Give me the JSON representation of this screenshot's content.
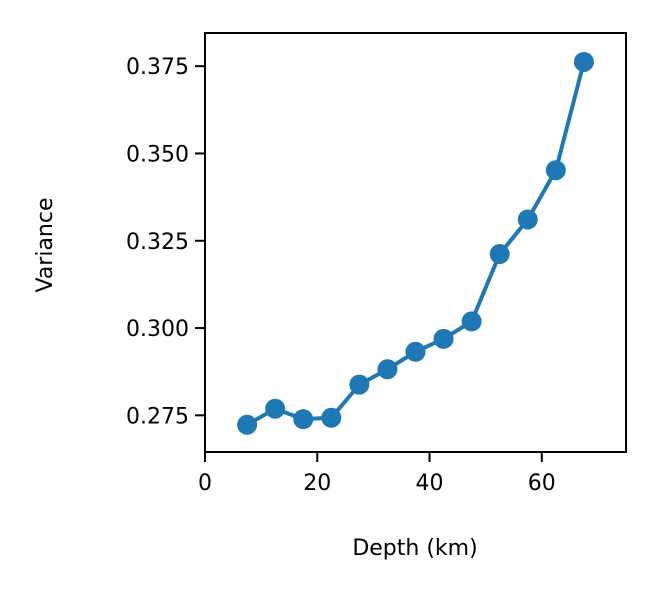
{
  "chart_data": {
    "type": "line",
    "title": "",
    "xlabel": "Depth (km)",
    "ylabel": "Variance",
    "xlim": [
      0,
      75
    ],
    "ylim": [
      0.2645,
      0.3845
    ],
    "x_ticks": [
      0,
      20,
      40,
      60
    ],
    "x_tick_labels": [
      "0",
      "20",
      "40",
      "60"
    ],
    "y_ticks": [
      0.275,
      0.3,
      0.325,
      0.35,
      0.375
    ],
    "y_tick_labels": [
      "0.275",
      "0.300",
      "0.325",
      "0.350",
      "0.375"
    ],
    "grid": false,
    "series": [
      {
        "color": "#1f77b4",
        "marker": "circle",
        "x": [
          7.5,
          12.5,
          17.5,
          22.5,
          27.5,
          32.5,
          37.5,
          42.5,
          47.5,
          52.5,
          57.5,
          62.5,
          67.5
        ],
        "y": [
          0.2723,
          0.2769,
          0.2739,
          0.2743,
          0.2838,
          0.2882,
          0.2932,
          0.2969,
          0.3019,
          0.3212,
          0.3311,
          0.3452,
          0.3762
        ]
      }
    ]
  }
}
